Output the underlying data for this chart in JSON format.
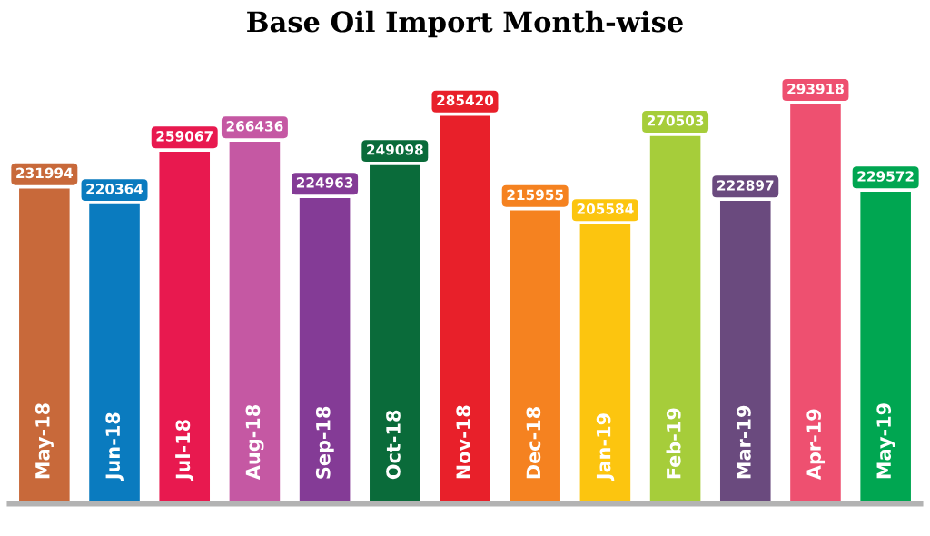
{
  "chart_data": {
    "type": "bar",
    "title": "Base Oil Import Month-wise",
    "categories": [
      "May-18",
      "Jun-18",
      "Jul-18",
      "Aug-18",
      "Sep-18",
      "Oct-18",
      "Nov-18",
      "Dec-18",
      "Jan-19",
      "Feb-19",
      "Mar-19",
      "Apr-19",
      "May-19"
    ],
    "values": [
      231994,
      220364,
      259067,
      266436,
      224963,
      249098,
      285420,
      215955,
      205584,
      270503,
      222897,
      293918,
      229572
    ],
    "colors": [
      "#c8693a",
      "#0a7bbf",
      "#e8194f",
      "#c558a3",
      "#843b96",
      "#0a6b3a",
      "#e8202a",
      "#f58220",
      "#fcc50f",
      "#a6cd3a",
      "#6a4a7e",
      "#ee5070",
      "#00a651"
    ],
    "data_labels": true
  }
}
